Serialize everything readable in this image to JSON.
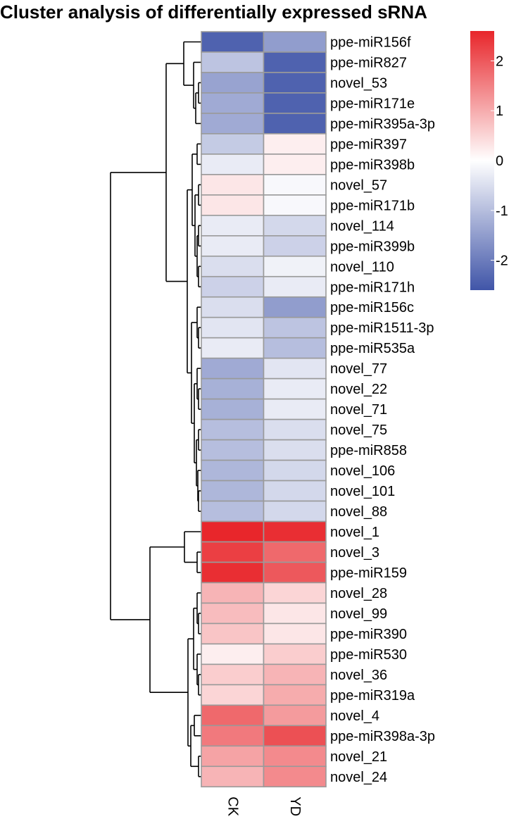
{
  "chart_data": {
    "type": "heatmap",
    "title": "Cluster analysis of differentially expressed sRNA",
    "columns": [
      "CK",
      "YD"
    ],
    "rows": [
      "ppe-miR156f",
      "ppe-miR827",
      "novel_53",
      "ppe-miR171e",
      "ppe-miR395a-3p",
      "ppe-miR397",
      "ppe-miR398b",
      "novel_57",
      "ppe-miR171b",
      "novel_114",
      "ppe-miR399b",
      "novel_110",
      "ppe-miR171h",
      "ppe-miR156c",
      "ppe-miR1511-3p",
      "ppe-miR535a",
      "novel_77",
      "novel_22",
      "novel_71",
      "novel_75",
      "ppe-miR858",
      "novel_106",
      "novel_101",
      "novel_88",
      "novel_1",
      "novel_3",
      "ppe-miR159",
      "novel_28",
      "novel_99",
      "ppe-miR390",
      "ppe-miR530",
      "novel_36",
      "ppe-miR319a",
      "novel_4",
      "ppe-miR398a-3p",
      "novel_21",
      "novel_24"
    ],
    "values": [
      [
        -2.4,
        -1.5
      ],
      [
        -0.9,
        -2.4
      ],
      [
        -1.4,
        -2.4
      ],
      [
        -1.3,
        -2.4
      ],
      [
        -1.3,
        -2.4
      ],
      [
        -0.8,
        0.2
      ],
      [
        -0.3,
        0.2
      ],
      [
        0.3,
        -0.1
      ],
      [
        0.3,
        -0.1
      ],
      [
        -0.3,
        -0.6
      ],
      [
        -0.3,
        -0.7
      ],
      [
        -0.5,
        -0.2
      ],
      [
        -0.7,
        -0.3
      ],
      [
        -0.5,
        -1.5
      ],
      [
        -0.4,
        -0.9
      ],
      [
        -0.3,
        -1.0
      ],
      [
        -1.3,
        -0.4
      ],
      [
        -1.2,
        -0.3
      ],
      [
        -1.2,
        -0.3
      ],
      [
        -1.0,
        -0.5
      ],
      [
        -1.0,
        -0.5
      ],
      [
        -1.1,
        -0.6
      ],
      [
        -1.1,
        -0.6
      ],
      [
        -1.0,
        -0.6
      ],
      [
        2.6,
        2.5
      ],
      [
        2.3,
        1.8
      ],
      [
        2.5,
        2.0
      ],
      [
        0.9,
        0.5
      ],
      [
        0.8,
        0.3
      ],
      [
        0.7,
        0.3
      ],
      [
        0.2,
        0.6
      ],
      [
        0.6,
        0.9
      ],
      [
        0.5,
        1.0
      ],
      [
        1.8,
        1.2
      ],
      [
        1.6,
        2.1
      ],
      [
        1.1,
        1.4
      ],
      [
        0.9,
        1.4
      ]
    ],
    "color_scale": {
      "min": -2.6,
      "max": 2.6,
      "low": "#4055a8",
      "mid": "#ffffff",
      "high": "#e8262b",
      "ticks": [
        2,
        1,
        0,
        -1,
        -2
      ],
      "tick_labels": [
        "2",
        "1",
        "0",
        "-1",
        "-2"
      ]
    },
    "cell_border_color": "#9a9a9a",
    "dendrogram": "rows"
  }
}
